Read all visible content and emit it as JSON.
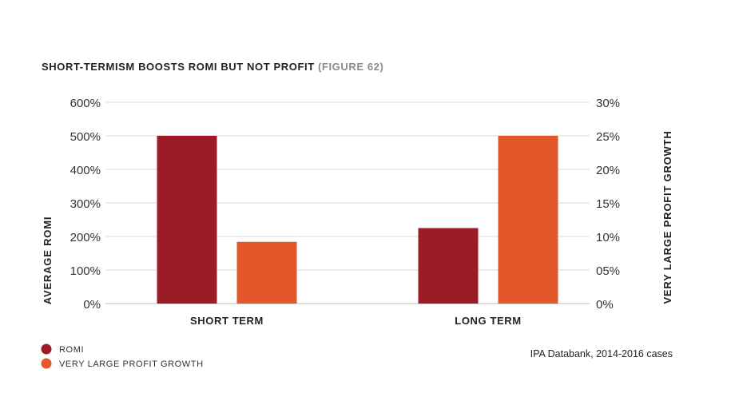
{
  "title": {
    "main": "SHORT-TERMISM BOOSTS ROMI BUT NOT PROFIT",
    "figure": "(FIGURE 62)"
  },
  "source": "IPA Databank, 2014-2016 cases",
  "colors": {
    "romi": "#9b1b26",
    "profit": "#e2582a",
    "grid": "#d9d9d9"
  },
  "chart_data": {
    "type": "bar",
    "categories": [
      "SHORT TERM",
      "LONG TERM"
    ],
    "series": [
      {
        "name": "ROMI",
        "axis": "left",
        "values": [
          500,
          225
        ]
      },
      {
        "name": "VERY LARGE PROFIT GROWTH",
        "axis": "right",
        "values": [
          9.2,
          25
        ]
      }
    ],
    "ylabel": "AVERAGE ROMI",
    "y2label": "VERY LARGE PROFIT GROWTH",
    "ylim": [
      0,
      600
    ],
    "y2lim": [
      0,
      30
    ],
    "yticks": [
      "0%",
      "100%",
      "200%",
      "300%",
      "400%",
      "500%",
      "600%"
    ],
    "y2ticks": [
      "0%",
      "05%",
      "10%",
      "15%",
      "20%",
      "25%",
      "30%"
    ],
    "grid": true,
    "legend_placement": "bottom-left"
  }
}
